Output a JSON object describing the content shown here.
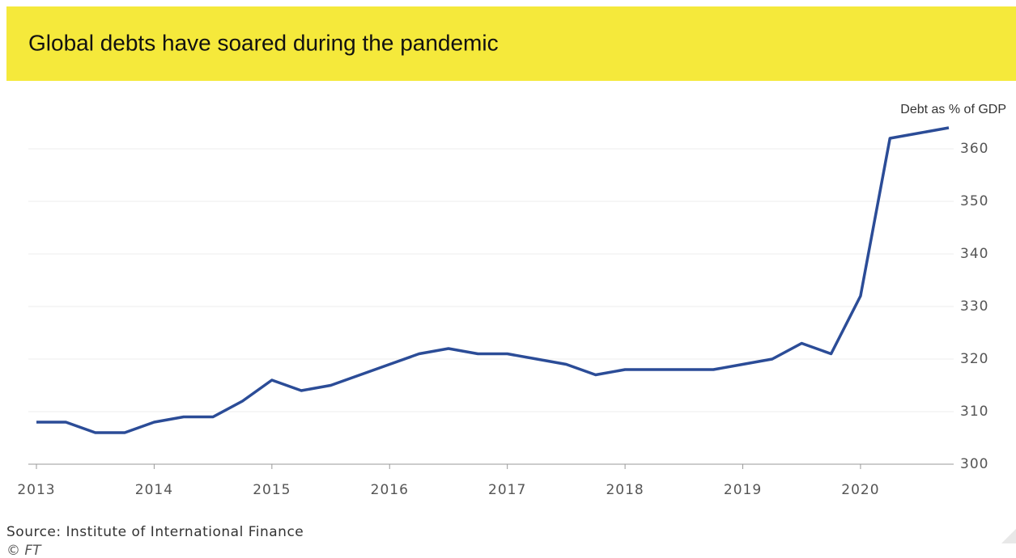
{
  "chart_data": {
    "type": "line",
    "title": "Global debts have soared during the pandemic",
    "y_axis_label": "Debt as % of GDP",
    "source": "Source: Institute of International Finance",
    "credit": "© FT",
    "x": [
      2013,
      2013.25,
      2013.5,
      2013.75,
      2014,
      2014.25,
      2014.5,
      2014.75,
      2015,
      2015.25,
      2015.5,
      2015.75,
      2016,
      2016.25,
      2016.5,
      2016.75,
      2017,
      2017.25,
      2017.5,
      2017.75,
      2018,
      2018.25,
      2018.5,
      2018.75,
      2019,
      2019.25,
      2019.5,
      2019.75,
      2020,
      2020.25,
      2020.5,
      2020.75
    ],
    "series": [
      {
        "name": "Global debt",
        "color": "#2b4c97",
        "values": [
          308,
          308,
          306,
          306,
          308,
          309,
          309,
          312,
          316,
          314,
          315,
          317,
          319,
          321,
          322,
          321,
          321,
          320,
          319,
          317,
          318,
          318,
          318,
          318,
          319,
          320,
          323,
          321,
          332,
          362,
          363,
          364
        ]
      }
    ],
    "xlim": [
      2013,
      2020.75
    ],
    "xticks": [
      2013,
      2014,
      2015,
      2016,
      2017,
      2018,
      2019,
      2020
    ],
    "ylim": [
      300,
      364
    ],
    "yticks": [
      300,
      310,
      320,
      330,
      340,
      350,
      360
    ],
    "grid": true
  }
}
